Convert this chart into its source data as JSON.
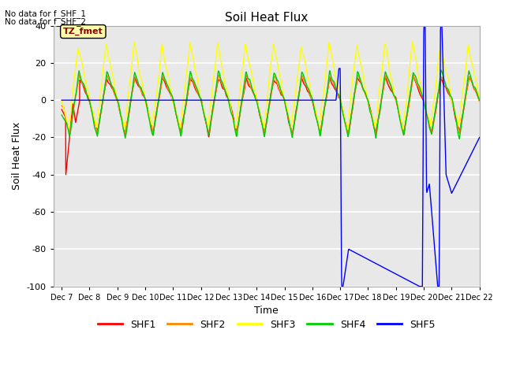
{
  "title": "Soil Heat Flux",
  "xlabel": "Time",
  "ylabel": "Soil Heat Flux",
  "ylim": [
    -100,
    40
  ],
  "yticks": [
    -100,
    -80,
    -60,
    -40,
    -20,
    0,
    20,
    40
  ],
  "note_line1": "No data for f_SHF_1",
  "note_line2": "No data for f_SHF_2",
  "tz_label": "TZ_fmet",
  "legend_entries": [
    "SHF1",
    "SHF2",
    "SHF3",
    "SHF4",
    "SHF5"
  ],
  "legend_colors": [
    "#ff0000",
    "#ff8800",
    "#ffff00",
    "#00cc00",
    "#0000ff"
  ],
  "fig_facecolor": "#ffffff",
  "axes_facecolor": "#e8e8e8",
  "x_start": 6.7,
  "x_end": 22.0,
  "xtick_labels": [
    "Dec 7",
    "Dec 8",
    "Dec 9",
    "Dec 10",
    "Dec 11",
    "Dec 12",
    "Dec 13",
    "Dec 14",
    "Dec 15",
    "Dec 16",
    "Dec 17",
    "Dec 18",
    "Dec 19",
    "Dec 20",
    "Dec 21",
    "Dec 22"
  ],
  "xtick_positions": [
    7,
    8,
    9,
    10,
    11,
    12,
    13,
    14,
    15,
    16,
    17,
    18,
    19,
    20,
    21,
    22
  ]
}
